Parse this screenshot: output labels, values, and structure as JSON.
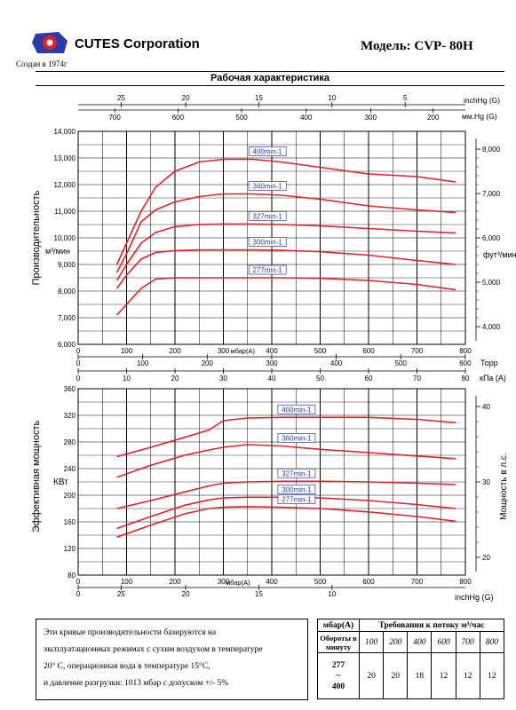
{
  "header": {
    "company": "CUTES Corporation",
    "since": "Создан в 1974г",
    "model": "Модель: CVP- 80H",
    "section_title": "Рабочая характеристика"
  },
  "colors": {
    "curve": "#d8242a",
    "grid": "#000000",
    "label_border": "#2a3c9a",
    "label_text": "#2a3c9a"
  },
  "chart_data": [
    {
      "type": "line",
      "title": "Рабочая характеристика",
      "ylabel": "Производительность",
      "ylabel_unit": "м³/мин",
      "ylabel_right": "фут³/мин",
      "xlabel": "мбар(А)",
      "xlim": [
        0,
        800
      ],
      "ylim": [
        6000,
        14000
      ],
      "x_ticks": [
        0,
        100,
        200,
        300,
        400,
        500,
        600,
        700,
        800
      ],
      "y_ticks": [
        6000,
        7000,
        8000,
        9000,
        10000,
        11000,
        12000,
        13000,
        14000
      ],
      "y_tick_labels": [
        "6,000",
        "7,000",
        "8,000",
        "9,000",
        "10,000",
        "11,000",
        "12,000",
        "13,000",
        "14,000"
      ],
      "right_axis_ticks": [
        "4,000",
        "5,000",
        "6,000",
        "7,000",
        "8,000"
      ],
      "right_axis_values": [
        4000,
        5000,
        6000,
        7000,
        8000
      ],
      "top_axes": {
        "inchhg_label": "inchHg (G)",
        "inchhg_ticks": [
          "25",
          "20",
          "15",
          "10",
          "5"
        ],
        "inchhg_x": [
          100,
          250,
          420,
          590,
          760
        ],
        "mmhg_label": "мм.Hg (G)",
        "mmhg_ticks": [
          "700",
          "600",
          "500",
          "400",
          "300",
          "200"
        ],
        "mmhg_x": [
          85,
          232,
          380,
          530,
          680,
          825
        ]
      },
      "bottom_axes": {
        "torr_label": "Торр",
        "torr_ticks": [
          "0",
          "100",
          "200",
          "300",
          "400",
          "500",
          "600"
        ],
        "kpa_label": "кПа (A)",
        "kpa_ticks": [
          "0",
          "10",
          "20",
          "30",
          "40",
          "50",
          "60",
          "70",
          "80"
        ]
      },
      "series": [
        {
          "name": "400min-1",
          "x": [
            80,
            100,
            130,
            160,
            200,
            250,
            300,
            360,
            420,
            500,
            600,
            700,
            780
          ],
          "y": [
            9000,
            9800,
            11000,
            11900,
            12500,
            12850,
            12950,
            12950,
            12850,
            12650,
            12400,
            12300,
            12100
          ]
        },
        {
          "name": "360min-1",
          "x": [
            80,
            100,
            130,
            160,
            200,
            250,
            300,
            360,
            420,
            500,
            600,
            700,
            780
          ],
          "y": [
            8700,
            9400,
            10600,
            11050,
            11350,
            11550,
            11650,
            11650,
            11600,
            11450,
            11200,
            11050,
            10950
          ]
        },
        {
          "name": "327min-1",
          "x": [
            80,
            100,
            130,
            160,
            200,
            250,
            300,
            360,
            420,
            500,
            600,
            700,
            780
          ],
          "y": [
            8400,
            9000,
            9800,
            10200,
            10420,
            10500,
            10520,
            10520,
            10500,
            10450,
            10350,
            10250,
            10180
          ]
        },
        {
          "name": "300min-1",
          "x": [
            80,
            100,
            130,
            160,
            200,
            250,
            300,
            360,
            420,
            500,
            600,
            700,
            780
          ],
          "y": [
            8100,
            8600,
            9200,
            9450,
            9520,
            9550,
            9550,
            9550,
            9530,
            9480,
            9350,
            9150,
            9000
          ]
        },
        {
          "name": "277min-1",
          "x": [
            80,
            100,
            130,
            160,
            200,
            250,
            300,
            360,
            420,
            500,
            600,
            700,
            780
          ],
          "y": [
            7100,
            7500,
            8100,
            8450,
            8500,
            8500,
            8500,
            8500,
            8500,
            8480,
            8400,
            8250,
            8050
          ]
        }
      ]
    },
    {
      "type": "line",
      "ylabel": "Эффективная мощность",
      "ylabel_unit": "КВт",
      "ylabel_right": "Мощность в л.с.",
      "xlabel": "мбар(А)",
      "xlim": [
        0,
        800
      ],
      "ylim": [
        80,
        360
      ],
      "x_ticks": [
        0,
        100,
        200,
        300,
        400,
        500,
        600,
        700,
        800
      ],
      "y_ticks": [
        80,
        120,
        160,
        200,
        240,
        280,
        320,
        360
      ],
      "right_axis_ticks": [
        "20",
        "30",
        "40"
      ],
      "right_axis_values": [
        148,
        233,
        318
      ],
      "bottom_axes": {
        "inchhg_label": "inchHg (G)",
        "inchhg_ticks": [
          "25",
          "20",
          "15",
          "10"
        ],
        "inchhg_x": [
          100,
          250,
          420,
          590
        ]
      },
      "series": [
        {
          "name": "400min-1",
          "x": [
            80,
            150,
            220,
            270,
            300,
            350,
            420,
            500,
            600,
            700,
            780
          ],
          "y": [
            258,
            272,
            287,
            298,
            312,
            316,
            317,
            317,
            317,
            314,
            309
          ]
        },
        {
          "name": "360min-1",
          "x": [
            80,
            150,
            220,
            270,
            300,
            350,
            420,
            500,
            600,
            700,
            780
          ],
          "y": [
            227,
            245,
            260,
            268,
            272,
            276,
            274,
            269,
            264,
            259,
            255
          ]
        },
        {
          "name": "327min-1",
          "x": [
            80,
            150,
            220,
            270,
            300,
            350,
            420,
            500,
            600,
            700,
            780
          ],
          "y": [
            180,
            192,
            205,
            214,
            218,
            220,
            221,
            221,
            220,
            218,
            216
          ]
        },
        {
          "name": "300min-1",
          "x": [
            80,
            150,
            220,
            270,
            300,
            350,
            420,
            500,
            600,
            700,
            780
          ],
          "y": [
            150,
            168,
            185,
            193,
            196,
            197,
            197,
            196,
            192,
            186,
            180
          ]
        },
        {
          "name": "277min-1",
          "x": [
            80,
            150,
            220,
            270,
            300,
            350,
            420,
            500,
            600,
            700,
            780
          ],
          "y": [
            137,
            155,
            172,
            180,
            182,
            183,
            182,
            180,
            175,
            168,
            161
          ]
        }
      ]
    }
  ],
  "note": {
    "line1": "Эти кривые производительности базируются на",
    "line2": "эксплуатационных режимах с сухим воздухом в температуре",
    "line3": "20° С, операционная вода в температуре 15°С,",
    "line4": "и давление разгрузки: 1013 мбар с допуском +/- 5%"
  },
  "flow_table": {
    "col1_header": "мбар(А)",
    "main_header": "Требования к потоку м³/час",
    "row_header": "Обороты в минуту",
    "pressures": [
      "100",
      "200",
      "400",
      "600",
      "700",
      "800"
    ],
    "rpm_lines": [
      "277",
      "~",
      "400"
    ],
    "values": [
      "20",
      "20",
      "18",
      "12",
      "12",
      "12"
    ]
  }
}
